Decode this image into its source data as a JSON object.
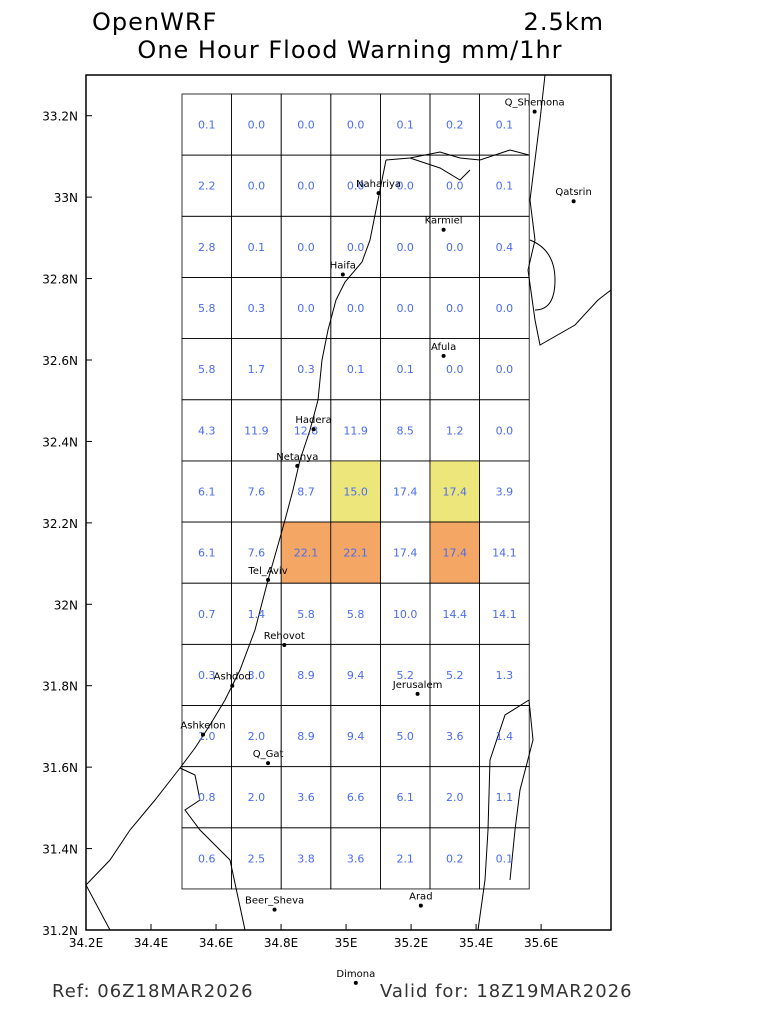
{
  "header": {
    "model": "OpenWRF",
    "resolution": "2.5km",
    "title": "One Hour Flood Warning mm/1hr"
  },
  "footer": {
    "ref": "Ref: 06Z18MAR2026",
    "valid": "Valid for: 18Z19MAR2026"
  },
  "map": {
    "xlim": [
      34.2,
      35.815
    ],
    "ylim": [
      31.2,
      33.3
    ],
    "xticks": [
      {
        "value": 34.2,
        "label": "34.2E"
      },
      {
        "value": 34.4,
        "label": "34.4E"
      },
      {
        "value": 34.6,
        "label": "34.6E"
      },
      {
        "value": 34.8,
        "label": "34.8E"
      },
      {
        "value": 35,
        "label": "35E"
      },
      {
        "value": 35.2,
        "label": "35.2E"
      },
      {
        "value": 35.4,
        "label": "35.4E"
      },
      {
        "value": 35.6,
        "label": "35.6E"
      }
    ],
    "yticks": [
      {
        "value": 31.2,
        "label": "31.2N"
      },
      {
        "value": 31.4,
        "label": "31.4N"
      },
      {
        "value": 31.6,
        "label": "31.6N"
      },
      {
        "value": 31.8,
        "label": "31.8N"
      },
      {
        "value": 32,
        "label": "32N"
      },
      {
        "value": 32.2,
        "label": "32.2N"
      },
      {
        "value": 32.4,
        "label": "32.4N"
      },
      {
        "value": 32.6,
        "label": "32.6N"
      },
      {
        "value": 32.8,
        "label": "32.8N"
      },
      {
        "value": 33,
        "label": "33N"
      },
      {
        "value": 33.2,
        "label": "33.2N"
      }
    ],
    "cities": [
      {
        "name": "Q_Shemona",
        "lon": 35.58,
        "lat": 33.21
      },
      {
        "name": "Qatsrin",
        "lon": 35.7,
        "lat": 32.99
      },
      {
        "name": "Nahariya",
        "lon": 35.1,
        "lat": 33.01
      },
      {
        "name": "Karmiel",
        "lon": 35.3,
        "lat": 32.92
      },
      {
        "name": "Haifa",
        "lon": 34.99,
        "lat": 32.81
      },
      {
        "name": "Afula",
        "lon": 35.3,
        "lat": 32.61
      },
      {
        "name": "Hadera",
        "lon": 34.9,
        "lat": 32.43
      },
      {
        "name": "Netanya",
        "lon": 34.85,
        "lat": 32.34
      },
      {
        "name": "Tel_Aviv",
        "lon": 34.76,
        "lat": 32.06
      },
      {
        "name": "Rehovot",
        "lon": 34.81,
        "lat": 31.9
      },
      {
        "name": "Ashdod",
        "lon": 34.65,
        "lat": 31.8
      },
      {
        "name": "Jerusalem",
        "lon": 35.22,
        "lat": 31.78
      },
      {
        "name": "Ashkelon",
        "lon": 34.56,
        "lat": 31.68
      },
      {
        "name": "Q_Gat",
        "lon": 34.76,
        "lat": 31.61
      },
      {
        "name": "Beer_Sheva",
        "lon": 34.78,
        "lat": 31.25
      },
      {
        "name": "Arad",
        "lon": 35.23,
        "lat": 31.26
      },
      {
        "name": "Dimona",
        "lon": 35.03,
        "lat": 31.07
      }
    ]
  },
  "table": {
    "rows": [
      [
        "0.1",
        "0.0",
        "0.0",
        "0.0",
        "0.1",
        "0.2",
        "0.1"
      ],
      [
        "2.2",
        "0.0",
        "0.0",
        "0.0",
        "0.0",
        "0.0",
        "0.1"
      ],
      [
        "2.8",
        "0.1",
        "0.0",
        "0.0",
        "0.0",
        "0.0",
        "0.4"
      ],
      [
        "5.8",
        "0.3",
        "0.0",
        "0.0",
        "0.0",
        "0.0",
        "0.0"
      ],
      [
        "5.8",
        "1.7",
        "0.3",
        "0.1",
        "0.1",
        "0.0",
        "0.0"
      ],
      [
        "4.3",
        "11.9",
        "12.8",
        "11.9",
        "8.5",
        "1.2",
        "0.0"
      ],
      [
        "6.1",
        "7.6",
        "8.7",
        "15.0",
        "17.4",
        "17.4",
        "3.9"
      ],
      [
        "6.1",
        "7.6",
        "22.1",
        "22.1",
        "17.4",
        "17.4",
        "14.1"
      ],
      [
        "0.7",
        "1.4",
        "5.8",
        "5.8",
        "10.0",
        "14.4",
        "14.1"
      ],
      [
        "0.3",
        "3.0",
        "8.9",
        "9.4",
        "5.2",
        "5.2",
        "1.3"
      ],
      [
        "1.0",
        "2.0",
        "8.9",
        "9.4",
        "5.0",
        "3.6",
        "1.4"
      ],
      [
        "0.8",
        "2.0",
        "3.6",
        "6.6",
        "6.1",
        "2.0",
        "1.1"
      ],
      [
        "0.6",
        "2.5",
        "3.8",
        "3.6",
        "2.1",
        "0.2",
        "0.1"
      ]
    ],
    "fills": [
      [
        null,
        null,
        null,
        null,
        null,
        null,
        null
      ],
      [
        null,
        null,
        null,
        null,
        null,
        null,
        null
      ],
      [
        null,
        null,
        null,
        null,
        null,
        null,
        null
      ],
      [
        null,
        null,
        null,
        null,
        null,
        null,
        null
      ],
      [
        null,
        null,
        null,
        null,
        null,
        null,
        null
      ],
      [
        null,
        null,
        null,
        null,
        null,
        null,
        null
      ],
      [
        null,
        null,
        null,
        "#ede67a",
        null,
        "#ede67a",
        null
      ],
      [
        null,
        null,
        "#f4a765",
        "#f4a765",
        null,
        "#f4a765",
        null
      ],
      [
        null,
        null,
        null,
        null,
        null,
        null,
        null
      ],
      [
        null,
        null,
        null,
        null,
        null,
        null,
        null
      ],
      [
        null,
        null,
        null,
        null,
        null,
        null,
        null
      ],
      [
        null,
        null,
        null,
        null,
        null,
        null,
        null
      ],
      [
        null,
        null,
        null,
        null,
        null,
        null,
        null
      ]
    ],
    "text_color": "#4a6cf0"
  }
}
